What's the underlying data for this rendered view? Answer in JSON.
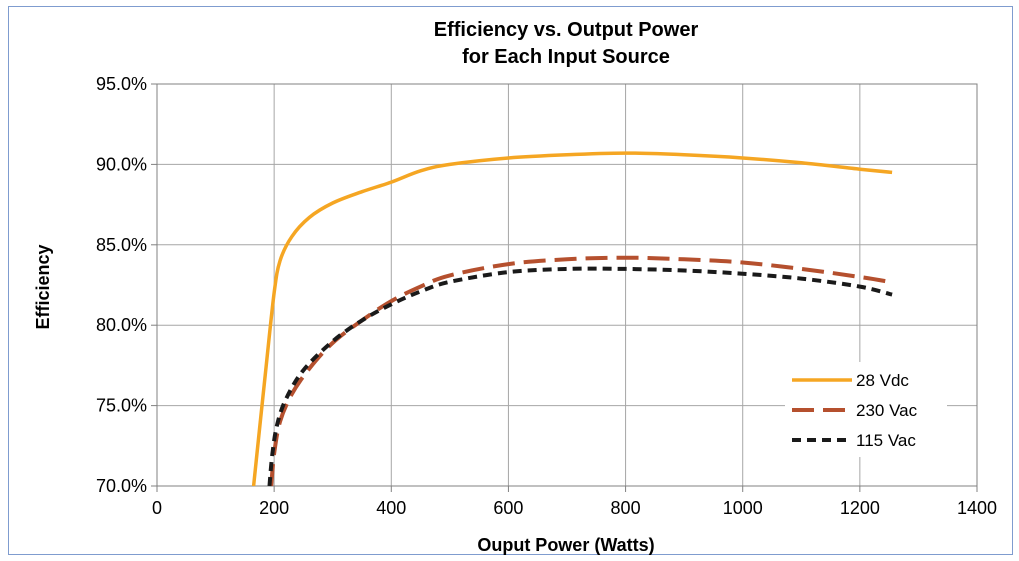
{
  "chart_data": {
    "type": "line",
    "title": [
      "Efficiency vs. Output Power",
      "for Each Input Source"
    ],
    "xlabel": "Ouput Power (Watts)",
    "ylabel": "Efficiency",
    "xlim": [
      0,
      1400
    ],
    "ylim": [
      70,
      95
    ],
    "xticks": [
      0,
      200,
      400,
      600,
      800,
      1000,
      1200,
      1400
    ],
    "xtick_labels": [
      "0",
      "200",
      "400",
      "600",
      "800",
      "1000",
      "1200",
      "1400"
    ],
    "yticks": [
      70,
      75,
      80,
      85,
      90,
      95
    ],
    "ytick_labels": [
      "70.0%",
      "75.0%",
      "80.0%",
      "85.0%",
      "90.0%",
      "95.0%"
    ],
    "grid": true,
    "legend_position": "right",
    "series": [
      {
        "name": "28 Vdc",
        "color": "#F5A623",
        "dash": "solid",
        "x": [
          165,
          185,
          200,
          210,
          230,
          260,
          300,
          350,
          400,
          450,
          500,
          600,
          700,
          800,
          900,
          1000,
          1100,
          1200,
          1255
        ],
        "y": [
          70.0,
          77.0,
          82.0,
          84.0,
          85.5,
          86.7,
          87.6,
          88.3,
          88.9,
          89.6,
          90.0,
          90.4,
          90.6,
          90.7,
          90.6,
          90.4,
          90.1,
          89.7,
          89.5
        ]
      },
      {
        "name": "230 Vac",
        "color": "#B5502E",
        "dash": "long-dash",
        "x": [
          195,
          200,
          210,
          230,
          260,
          300,
          350,
          400,
          450,
          500,
          600,
          700,
          800,
          900,
          1000,
          1100,
          1200,
          1250
        ],
        "y": [
          70.0,
          72.0,
          74.0,
          75.7,
          77.3,
          78.9,
          80.3,
          81.5,
          82.4,
          83.1,
          83.8,
          84.1,
          84.2,
          84.1,
          83.9,
          83.5,
          83.0,
          82.7
        ]
      },
      {
        "name": "115 Vac",
        "color": "#1a1a1a",
        "dash": "short-dash",
        "x": [
          192,
          197,
          205,
          220,
          250,
          300,
          350,
          400,
          450,
          500,
          600,
          700,
          800,
          900,
          1000,
          1100,
          1200,
          1255
        ],
        "y": [
          70.0,
          72.0,
          73.8,
          75.4,
          77.2,
          79.0,
          80.3,
          81.3,
          82.1,
          82.7,
          83.3,
          83.5,
          83.5,
          83.4,
          83.2,
          82.9,
          82.4,
          81.9
        ]
      }
    ]
  }
}
